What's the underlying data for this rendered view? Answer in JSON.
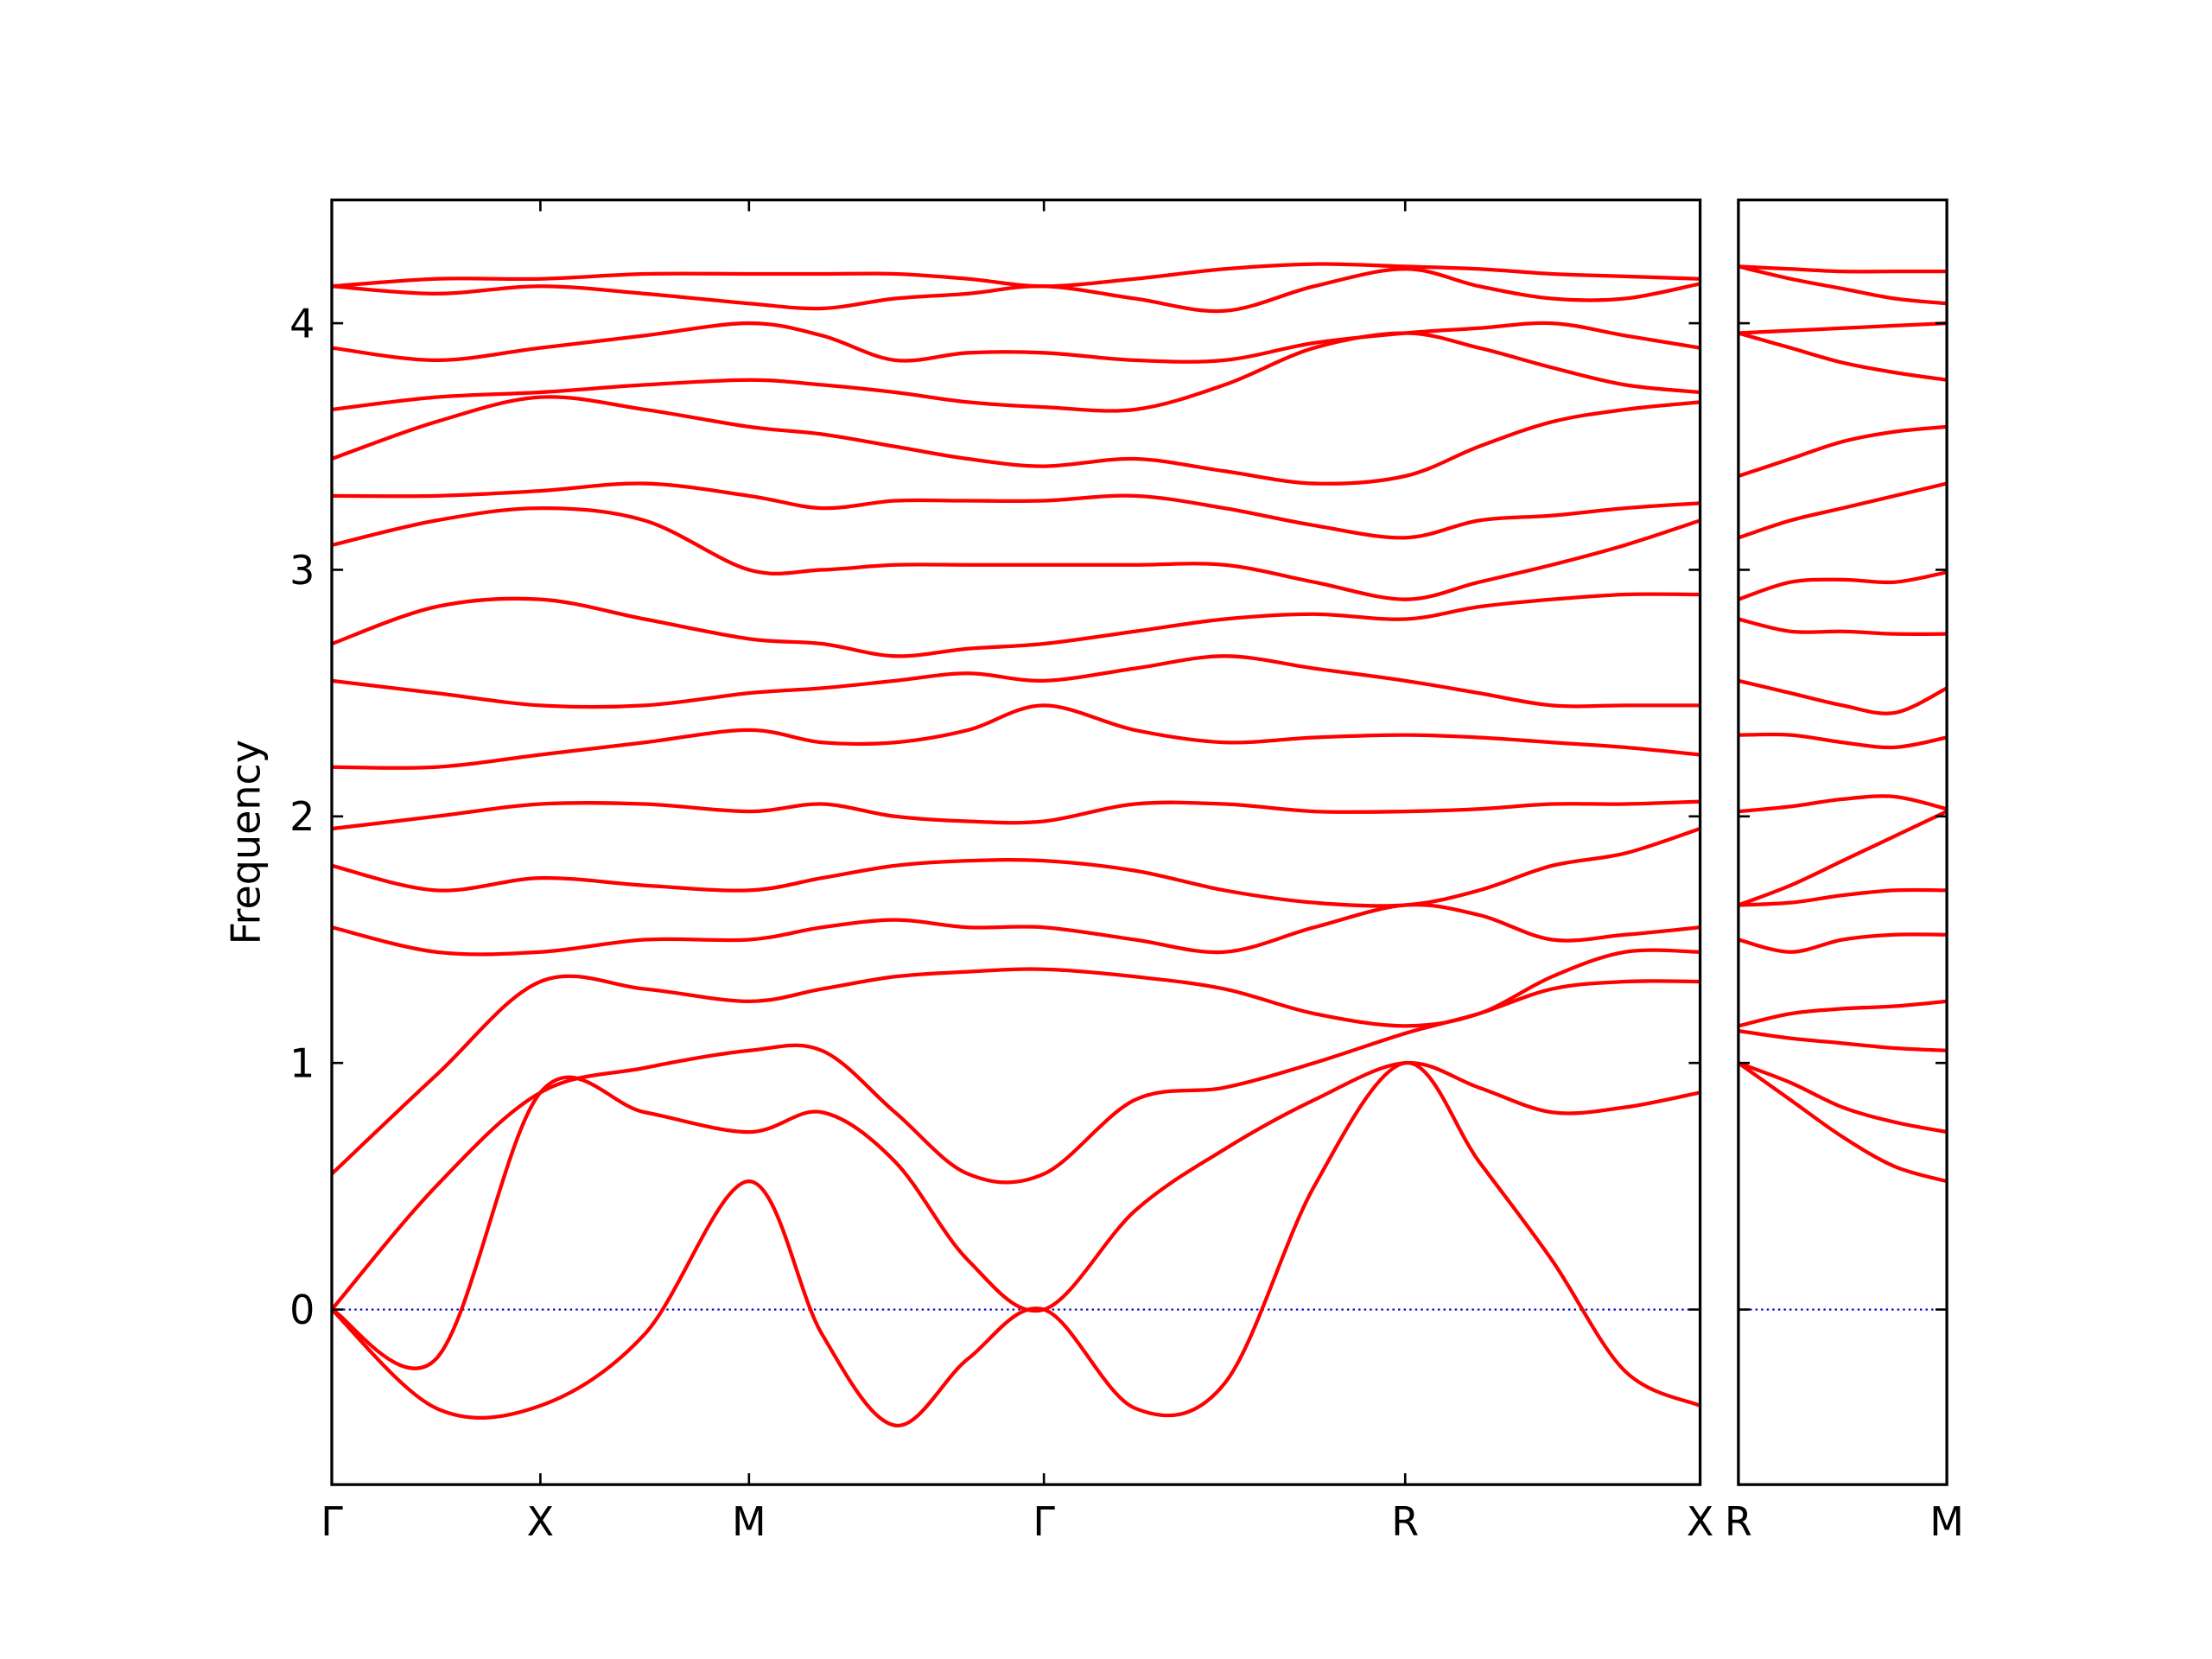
{
  "chart_data": [
    {
      "type": "line",
      "y_label": "Frequency",
      "color": "#ff0000",
      "hline": 0,
      "hline_color": "#0000cc",
      "x": [
        0,
        0.5,
        1,
        1.5,
        2,
        2.35,
        2.7,
        3.05,
        3.414,
        3.85,
        4.28,
        4.71,
        5.146,
        5.5,
        5.85,
        6.2,
        6.56
      ],
      "xlim": [
        0,
        6.56
      ],
      "xticks": [
        {
          "value": 0,
          "label": "Γ"
        },
        {
          "value": 1,
          "label": "X"
        },
        {
          "value": 2,
          "label": "M"
        },
        {
          "value": 3.414,
          "label": "Γ"
        },
        {
          "value": 5.146,
          "label": "R"
        },
        {
          "value": 6.56,
          "label": "X"
        }
      ],
      "ylim": [
        -0.71,
        4.5
      ],
      "yticks": [
        0,
        1,
        2,
        3,
        4
      ],
      "series": [
        {
          "values": [
            0,
            -0.4,
            -0.39,
            -0.1,
            0.52,
            -0.1,
            -0.47,
            -0.2,
            0,
            -0.4,
            -0.3,
            0.5,
            1.0,
            0.6,
            0.2,
            -0.25,
            -0.39
          ]
        },
        {
          "values": [
            0,
            -0.2,
            0.88,
            0.8,
            0.72,
            0.8,
            0.6,
            0.2,
            0,
            0.4,
            0.65,
            0.85,
            1.0,
            0.9,
            0.8,
            0.82,
            0.88
          ]
        },
        {
          "values": [
            0,
            0.5,
            0.88,
            0.98,
            1.05,
            1.05,
            0.8,
            0.55,
            0.55,
            0.85,
            0.9,
            1.0,
            1.12,
            1.2,
            1.3,
            1.33,
            1.33
          ]
        },
        {
          "values": [
            0.55,
            0.95,
            1.33,
            1.3,
            1.25,
            1.3,
            1.35,
            1.37,
            1.38,
            1.35,
            1.3,
            1.2,
            1.15,
            1.2,
            1.35,
            1.45,
            1.45
          ]
        },
        {
          "values": [
            1.55,
            1.45,
            1.45,
            1.5,
            1.5,
            1.55,
            1.58,
            1.55,
            1.55,
            1.5,
            1.45,
            1.55,
            1.64,
            1.6,
            1.5,
            1.52,
            1.55
          ]
        },
        {
          "values": [
            1.8,
            1.7,
            1.75,
            1.72,
            1.7,
            1.75,
            1.8,
            1.82,
            1.82,
            1.78,
            1.7,
            1.65,
            1.64,
            1.7,
            1.8,
            1.85,
            1.95
          ]
        },
        {
          "values": [
            1.95,
            2.0,
            2.05,
            2.05,
            2.02,
            2.05,
            2.0,
            1.98,
            1.98,
            2.05,
            2.05,
            2.02,
            2.02,
            2.03,
            2.05,
            2.05,
            2.06
          ]
        },
        {
          "values": [
            2.2,
            2.2,
            2.25,
            2.3,
            2.35,
            2.3,
            2.3,
            2.35,
            2.45,
            2.35,
            2.3,
            2.32,
            2.33,
            2.32,
            2.3,
            2.28,
            2.25
          ]
        },
        {
          "values": [
            2.55,
            2.5,
            2.45,
            2.45,
            2.5,
            2.52,
            2.55,
            2.58,
            2.55,
            2.6,
            2.65,
            2.6,
            2.55,
            2.5,
            2.45,
            2.45,
            2.45
          ]
        },
        {
          "values": [
            2.7,
            2.85,
            2.88,
            2.8,
            2.72,
            2.7,
            2.65,
            2.68,
            2.7,
            2.75,
            2.8,
            2.82,
            2.8,
            2.85,
            2.88,
            2.9,
            2.9
          ]
        },
        {
          "values": [
            3.1,
            3.2,
            3.25,
            3.2,
            3.0,
            3.0,
            3.02,
            3.02,
            3.02,
            3.02,
            3.02,
            2.95,
            2.88,
            2.95,
            3.02,
            3.1,
            3.2
          ]
        },
        {
          "values": [
            3.3,
            3.3,
            3.32,
            3.35,
            3.3,
            3.25,
            3.28,
            3.28,
            3.28,
            3.3,
            3.25,
            3.18,
            3.13,
            3.2,
            3.22,
            3.25,
            3.27
          ]
        },
        {
          "values": [
            3.45,
            3.6,
            3.7,
            3.65,
            3.58,
            3.55,
            3.5,
            3.45,
            3.42,
            3.45,
            3.4,
            3.35,
            3.38,
            3.5,
            3.6,
            3.65,
            3.68
          ]
        },
        {
          "values": [
            3.65,
            3.7,
            3.72,
            3.75,
            3.77,
            3.75,
            3.72,
            3.68,
            3.66,
            3.65,
            3.75,
            3.9,
            3.96,
            3.9,
            3.82,
            3.75,
            3.72
          ]
        },
        {
          "values": [
            3.9,
            3.85,
            3.9,
            3.95,
            4.0,
            3.95,
            3.85,
            3.88,
            3.88,
            3.85,
            3.85,
            3.92,
            3.96,
            3.98,
            4.0,
            3.95,
            3.9
          ]
        },
        {
          "values": [
            4.15,
            4.18,
            4.18,
            4.2,
            4.2,
            4.2,
            4.2,
            4.18,
            4.15,
            4.18,
            4.22,
            4.24,
            4.23,
            4.22,
            4.2,
            4.19,
            4.18
          ]
        },
        {
          "values": [
            4.15,
            4.12,
            4.15,
            4.12,
            4.08,
            4.06,
            4.1,
            4.12,
            4.15,
            4.1,
            4.05,
            4.15,
            4.22,
            4.15,
            4.1,
            4.1,
            4.16
          ]
        }
      ]
    },
    {
      "type": "line",
      "color": "#ff0000",
      "hline": 0,
      "hline_color": "#0000cc",
      "x": [
        0,
        0.25,
        0.5,
        0.75,
        1
      ],
      "xlim": [
        0,
        1
      ],
      "xticks": [
        {
          "value": 0,
          "label": "R"
        },
        {
          "value": 1,
          "label": "M"
        }
      ],
      "ylim": [
        -0.71,
        4.5
      ],
      "yticks": [
        0,
        1,
        2,
        3,
        4
      ],
      "series": [
        {
          "values": [
            1.0,
            0.85,
            0.7,
            0.58,
            0.52
          ]
        },
        {
          "values": [
            1.0,
            0.92,
            0.82,
            0.76,
            0.72
          ]
        },
        {
          "values": [
            1.13,
            1.1,
            1.08,
            1.06,
            1.05
          ]
        },
        {
          "values": [
            1.15,
            1.2,
            1.22,
            1.23,
            1.25
          ]
        },
        {
          "values": [
            1.5,
            1.45,
            1.5,
            1.52,
            1.52
          ]
        },
        {
          "values": [
            1.64,
            1.65,
            1.68,
            1.7,
            1.7
          ]
        },
        {
          "values": [
            1.64,
            1.72,
            1.82,
            1.92,
            2.02
          ]
        },
        {
          "values": [
            2.02,
            2.04,
            2.07,
            2.08,
            2.03
          ]
        },
        {
          "values": [
            2.33,
            2.33,
            2.3,
            2.28,
            2.32
          ]
        },
        {
          "values": [
            2.55,
            2.5,
            2.45,
            2.42,
            2.52
          ]
        },
        {
          "values": [
            2.8,
            2.75,
            2.75,
            2.74,
            2.74
          ]
        },
        {
          "values": [
            2.88,
            2.95,
            2.96,
            2.95,
            2.99
          ]
        },
        {
          "values": [
            3.13,
            3.2,
            3.25,
            3.3,
            3.35
          ]
        },
        {
          "values": [
            3.38,
            3.45,
            3.52,
            3.56,
            3.58
          ]
        },
        {
          "values": [
            3.96,
            3.97,
            3.98,
            3.99,
            4.0
          ]
        },
        {
          "values": [
            3.96,
            3.9,
            3.84,
            3.8,
            3.77
          ]
        },
        {
          "values": [
            4.23,
            4.22,
            4.21,
            4.21,
            4.21
          ]
        },
        {
          "values": [
            4.23,
            4.18,
            4.14,
            4.1,
            4.08
          ]
        }
      ]
    }
  ]
}
